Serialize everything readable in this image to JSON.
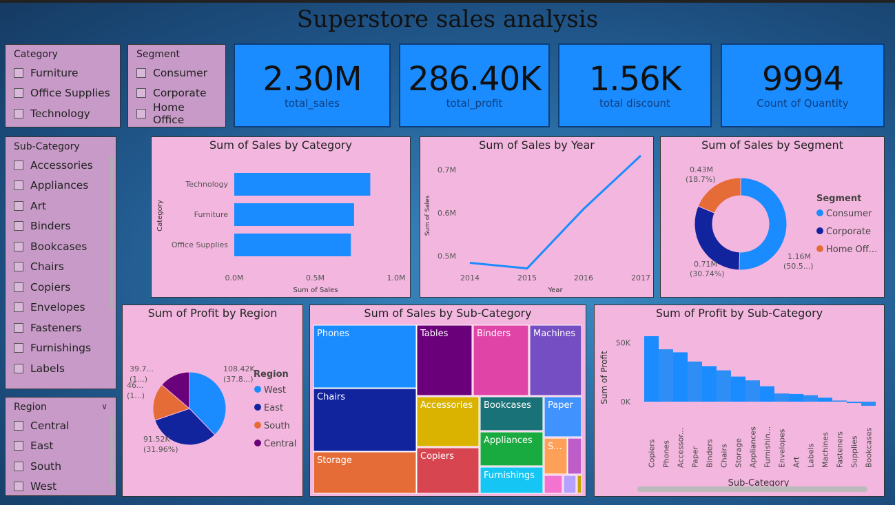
{
  "title": "Superstore sales analysis",
  "slicers": {
    "category": {
      "title": "Category",
      "options": [
        "Furniture",
        "Office Supplies",
        "Technology"
      ]
    },
    "segment": {
      "title": "Segment",
      "options": [
        "Consumer",
        "Corporate",
        "Home Office"
      ]
    },
    "subcategory": {
      "title": "Sub-Category",
      "options": [
        "Accessories",
        "Appliances",
        "Art",
        "Binders",
        "Bookcases",
        "Chairs",
        "Copiers",
        "Envelopes",
        "Fasteners",
        "Furnishings",
        "Labels"
      ]
    },
    "region": {
      "title": "Region",
      "options": [
        "Central",
        "East",
        "South",
        "West"
      ]
    }
  },
  "cards": [
    {
      "value": "2.30M",
      "label": "total_sales"
    },
    {
      "value": "286.40K",
      "label": "total_profit"
    },
    {
      "value": "1.56K",
      "label": "total discount"
    },
    {
      "value": "9994",
      "label": "Count of Quantity"
    }
  ],
  "charts": {
    "cat": {
      "title": "Sum of Sales by Category",
      "xlabel": "Sum of Sales",
      "ylabel": "Category",
      "ticks": [
        "0.0M",
        "0.5M",
        "1.0M"
      ]
    },
    "year": {
      "title": "Sum of Sales by Year",
      "xlabel": "Year",
      "ylabel": "Sum of Sales",
      "yticks": [
        "0.7M",
        "0.6M",
        "0.5M"
      ]
    },
    "seg": {
      "title": "Sum of Sales by Segment",
      "legend_title": "Segment"
    },
    "region": {
      "title": "Sum of Profit by Region",
      "legend_title": "Region"
    },
    "tree": {
      "title": "Sum of Sales by Sub-Category"
    },
    "psub": {
      "title": "Sum of Profit by Sub-Category",
      "xlabel": "Sub-Category",
      "ylabel": "Sum of Profit",
      "yticks": [
        "50K",
        "0K"
      ]
    }
  },
  "chart_data": [
    {
      "type": "bar",
      "title": "Sum of Sales by Category",
      "categories": [
        "Technology",
        "Furniture",
        "Office Supplies"
      ],
      "values": [
        0.84,
        0.74,
        0.72
      ],
      "xlim": [
        0,
        1.0
      ],
      "xlabel": "Sum of Sales",
      "ylabel": "Category",
      "color": "#1a8cff"
    },
    {
      "type": "line",
      "title": "Sum of Sales by Year",
      "x": [
        "2014",
        "2015",
        "2016",
        "2017"
      ],
      "values": [
        0.484,
        0.471,
        0.609,
        0.733
      ],
      "ylim": [
        0.44,
        0.76
      ],
      "xlabel": "Year",
      "ylabel": "Sum of Sales",
      "color": "#1a8cff"
    },
    {
      "type": "pie",
      "title": "Sum of Sales by Segment",
      "donut": true,
      "labels": [
        "Consumer",
        "Corporate",
        "Home Off..."
      ],
      "values": [
        50.5,
        30.74,
        18.7
      ],
      "value_labels": [
        "1.16M",
        "0.71M",
        "0.43M"
      ],
      "pct_labels": [
        "(50.5...)",
        "(30.74%)",
        "(18.7%)"
      ],
      "colors": [
        "#1a8cff",
        "#12239e",
        "#e66c37"
      ]
    },
    {
      "type": "pie",
      "title": "Sum of Profit by Region",
      "labels": [
        "West",
        "East",
        "South",
        "Central"
      ],
      "values": [
        37.8,
        31.96,
        16.5,
        13.74
      ],
      "value_labels": [
        "108.42K",
        "91.52K",
        "46...",
        "39.7..."
      ],
      "pct_labels": [
        "(37.8...)",
        "(31.96%)",
        "(1...)",
        "(1...)"
      ],
      "colors": [
        "#1a8cff",
        "#12239e",
        "#e66c37",
        "#6b007b"
      ]
    },
    {
      "type": "treemap",
      "title": "Sum of Sales by Sub-Category",
      "categories": [
        "Phones",
        "Chairs",
        "Storage",
        "Tables",
        "Binders",
        "Machines",
        "Accessories",
        "Copiers",
        "Bookcases",
        "Appliances",
        "Furnishings",
        "Paper",
        "S..."
      ]
    },
    {
      "type": "bar",
      "title": "Sum of Profit by Sub-Category",
      "categories": [
        "Copiers",
        "Phones",
        "Accessor...",
        "Paper",
        "Binders",
        "Chairs",
        "Storage",
        "Appliances",
        "Furnishin...",
        "Envelopes",
        "Art",
        "Labels",
        "Machines",
        "Fasteners",
        "Supplies",
        "Bookcases"
      ],
      "values": [
        55.6,
        44.5,
        41.9,
        34.1,
        30.2,
        26.6,
        21.3,
        18.1,
        13.1,
        6.96,
        6.5,
        5.5,
        3.4,
        0.95,
        -1.2,
        -3.5
      ],
      "xlabel": "Sub-Category",
      "ylabel": "Sum of Profit",
      "color": "#1a8cff"
    }
  ]
}
